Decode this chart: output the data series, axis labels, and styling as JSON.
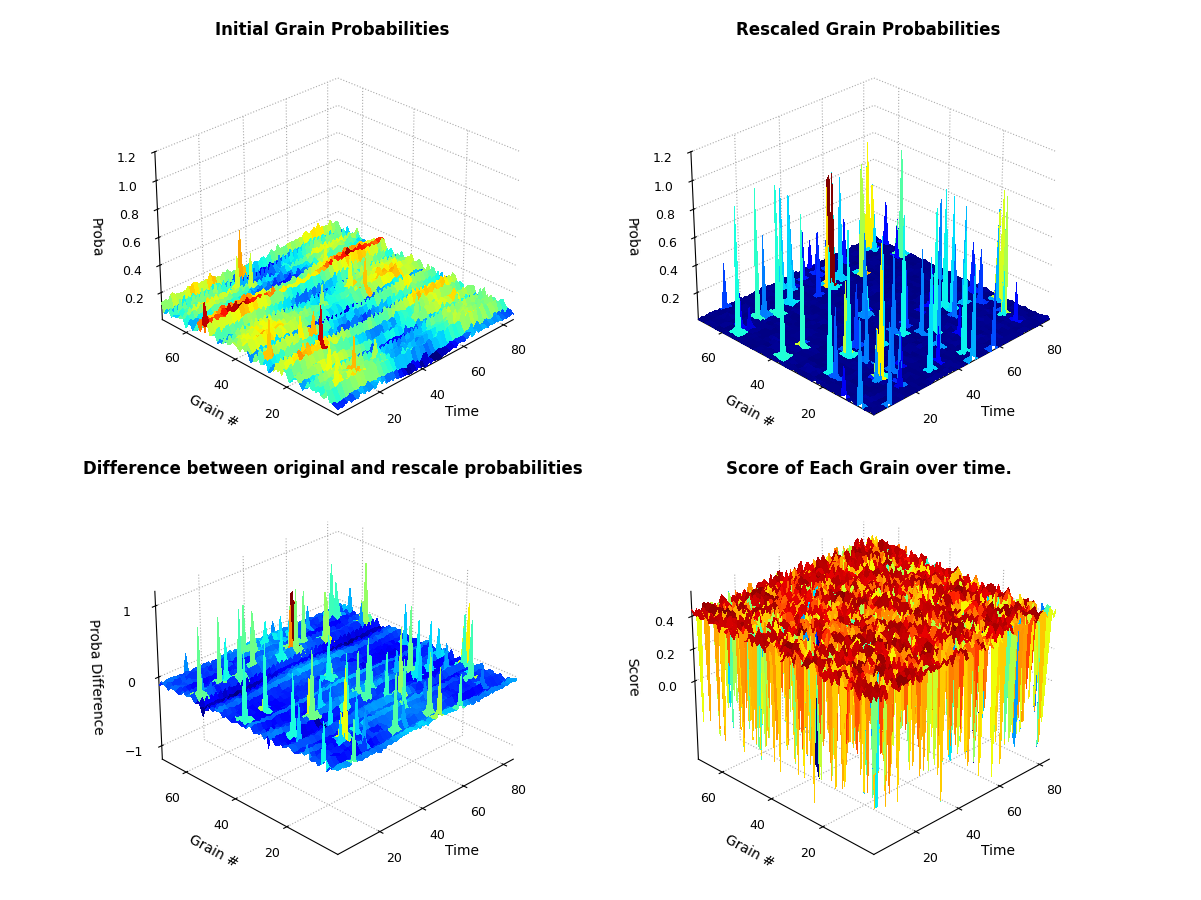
{
  "titles": [
    "Initial Grain Probabilities",
    "Rescaled Grain Probabilities",
    "Difference between original and rescale probabilities",
    "Score of Each Grain over time."
  ],
  "ylabels_3d": [
    "Time",
    "Time",
    "Time",
    "Time"
  ],
  "xlabels_3d": [
    "Grain #",
    "Grain #",
    "Grain #",
    "Grain #"
  ],
  "zlabels_3d": [
    "Proba",
    "Proba",
    "Proba Difference",
    "Score"
  ],
  "n_grains": 70,
  "n_time": 85,
  "seed": 42,
  "background_color": "#ffffff",
  "title_fontsize": 12,
  "label_fontsize": 10,
  "tick_fontsize": 9,
  "elev": 28,
  "azim": -135
}
